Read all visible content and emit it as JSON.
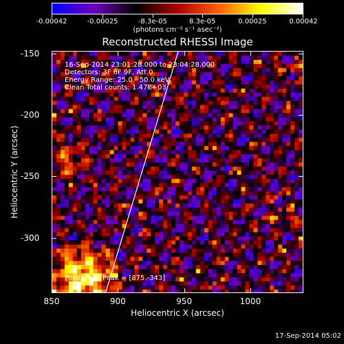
{
  "colorbar": {
    "tick_labels": [
      "-0.00042",
      "-0.00025",
      "-8.3e-05",
      "8.3e-05",
      "0.00025",
      "0.00042"
    ],
    "unit_label": "(photons cm⁻² s⁻¹ asec⁻²)",
    "colors": [
      "#0000ff",
      "#7000c0",
      "#000000",
      "#b00000",
      "#ff6000",
      "#ffff00",
      "#ffffff"
    ]
  },
  "chart_data": {
    "type": "heatmap",
    "title": "Reconstructed RHESSI Image",
    "xlabel": "Heliocentric X (arcsec)",
    "ylabel": "Heliocentric Y (arcsec)",
    "xlim": [
      850,
      1040
    ],
    "ylim": [
      -345,
      -148
    ],
    "x_ticks": [
      850,
      900,
      950,
      1000
    ],
    "x_tick_labels": [
      "850",
      "900",
      "950",
      "1000"
    ],
    "y_ticks": [
      -150,
      -200,
      -250,
      -300
    ],
    "y_tick_labels": [
      "-150",
      "-200",
      "-250",
      "-300"
    ],
    "color_range": [
      -0.00042,
      0.00042
    ],
    "annotations": [
      "16-Sep-2014 23:01:28.000 to 23:04:28.000",
      "Detectors: 3F 6F 9F, Att 0",
      "Energy Range: 25.0 - 50.0 keV",
      "Clean    Total counts: 1.47E+03"
    ],
    "peak_text": "Position of Peak = [875,-343]",
    "peak": [
      875,
      -343
    ],
    "limb_line": {
      "x": [
        890,
        945
      ],
      "y": [
        -345,
        -148
      ]
    }
  },
  "footer": {
    "timestamp": "17-Sep-2014 05:02"
  }
}
